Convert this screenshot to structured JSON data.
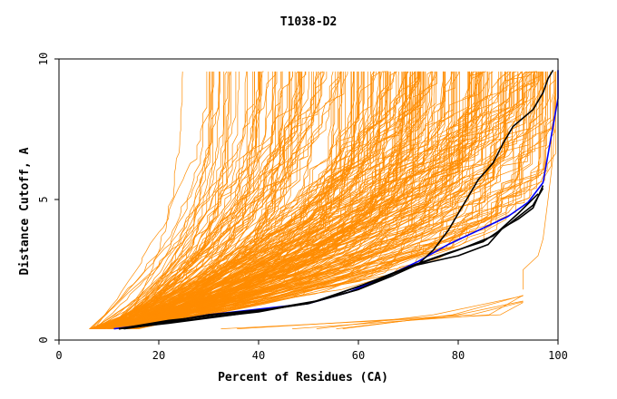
{
  "chart_data": {
    "type": "line",
    "title": "T1038-D2",
    "xlabel": "Percent of Residues (CA)",
    "ylabel": "Distance Cutoff, A",
    "xlim": [
      0,
      100
    ],
    "ylim": [
      0,
      10
    ],
    "x_ticks": [
      "0",
      "20",
      "40",
      "60",
      "80",
      "100"
    ],
    "y_ticks": [
      "0",
      "5",
      "10"
    ],
    "grid": false,
    "legend": "none",
    "colors": {
      "background_series": "#ff8c00",
      "highlight_blue": "#0000ff",
      "highlight_black": "#000000"
    },
    "highlight_series": [
      {
        "color": "#0000ff",
        "points": [
          [
            11,
            0.4
          ],
          [
            20,
            0.6
          ],
          [
            30,
            0.9
          ],
          [
            40,
            1.1
          ],
          [
            50,
            1.3
          ],
          [
            58,
            1.7
          ],
          [
            66,
            2.3
          ],
          [
            72,
            2.8
          ],
          [
            78,
            3.4
          ],
          [
            84,
            3.9
          ],
          [
            90,
            4.4
          ],
          [
            94,
            4.9
          ],
          [
            97,
            5.6
          ],
          [
            98,
            6.6
          ],
          [
            99,
            7.6
          ],
          [
            100,
            8.6
          ],
          [
            100,
            9.6
          ]
        ]
      },
      {
        "color": "#000000",
        "points": [
          [
            12,
            0.4
          ],
          [
            20,
            0.6
          ],
          [
            30,
            0.9
          ],
          [
            42,
            1.1
          ],
          [
            52,
            1.4
          ],
          [
            60,
            1.8
          ],
          [
            67,
            2.3
          ],
          [
            72,
            2.7
          ],
          [
            75,
            3.2
          ],
          [
            78,
            3.9
          ],
          [
            80,
            4.5
          ],
          [
            82,
            5.1
          ],
          [
            84,
            5.7
          ],
          [
            87,
            6.3
          ],
          [
            89,
            7.0
          ],
          [
            91,
            7.6
          ],
          [
            95,
            8.2
          ],
          [
            97,
            8.8
          ],
          [
            98,
            9.3
          ],
          [
            99,
            9.6
          ]
        ]
      },
      {
        "color": "#000000",
        "points": [
          [
            12,
            0.4
          ],
          [
            22,
            0.6
          ],
          [
            35,
            0.9
          ],
          [
            50,
            1.3
          ],
          [
            60,
            1.8
          ],
          [
            70,
            2.6
          ],
          [
            80,
            3.0
          ],
          [
            86,
            3.4
          ],
          [
            89,
            4.0
          ],
          [
            92,
            4.3
          ],
          [
            95,
            4.7
          ],
          [
            97,
            5.5
          ]
        ]
      },
      {
        "color": "#000000",
        "points": [
          [
            13,
            0.4
          ],
          [
            25,
            0.7
          ],
          [
            40,
            1.0
          ],
          [
            52,
            1.4
          ],
          [
            63,
            2.1
          ],
          [
            72,
            2.7
          ],
          [
            80,
            3.2
          ],
          [
            87,
            3.7
          ],
          [
            92,
            4.5
          ],
          [
            96,
            5.2
          ]
        ]
      },
      {
        "color": "#000000",
        "points": [
          [
            12,
            0.4
          ],
          [
            22,
            0.7
          ],
          [
            38,
            1.0
          ],
          [
            50,
            1.3
          ],
          [
            60,
            1.9
          ],
          [
            70,
            2.6
          ],
          [
            78,
            3.1
          ],
          [
            85,
            3.5
          ],
          [
            90,
            4.1
          ],
          [
            95,
            4.8
          ],
          [
            97,
            5.4
          ]
        ]
      }
    ]
  }
}
